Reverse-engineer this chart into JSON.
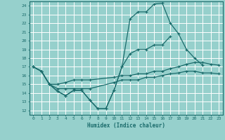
{
  "xlabel": "Humidex (Indice chaleur)",
  "xlim": [
    -0.5,
    23.5
  ],
  "ylim": [
    11.5,
    24.5
  ],
  "xticks": [
    0,
    1,
    2,
    3,
    4,
    5,
    6,
    7,
    8,
    9,
    10,
    11,
    12,
    13,
    14,
    15,
    16,
    17,
    18,
    19,
    20,
    21,
    22,
    23
  ],
  "yticks": [
    12,
    13,
    14,
    15,
    16,
    17,
    18,
    19,
    20,
    21,
    22,
    23,
    24
  ],
  "bg_color": "#96d0cc",
  "grid_color": "#ffffff",
  "line_color": "#1a6b6b",
  "lines": [
    {
      "x": [
        0,
        1,
        2,
        3,
        4,
        5,
        6,
        7,
        8,
        9,
        10,
        11,
        12,
        13,
        14,
        15,
        16,
        17,
        18,
        19,
        20,
        21
      ],
      "y": [
        17,
        16.5,
        15,
        14.2,
        13.7,
        14.3,
        14.3,
        13.2,
        12.2,
        12.2,
        14.3,
        17.0,
        22.5,
        23.3,
        23.3,
        24.2,
        24.3,
        22.0,
        20.8,
        19.0,
        18.0,
        17.2
      ]
    },
    {
      "x": [
        0,
        1,
        2,
        3,
        4,
        5,
        6,
        7,
        8,
        9,
        10,
        11,
        12,
        13,
        14,
        15,
        16,
        17
      ],
      "y": [
        17,
        16.5,
        15,
        14.2,
        13.7,
        14.3,
        14.3,
        13.2,
        12.2,
        12.2,
        14.3,
        17.0,
        18.5,
        19.0,
        19.0,
        19.5,
        19.5,
        20.5
      ]
    },
    {
      "x": [
        0,
        1,
        2,
        3,
        4,
        5,
        6,
        7,
        10,
        11,
        12,
        13,
        14,
        15,
        16,
        17,
        18,
        19,
        20,
        21,
        22,
        23
      ],
      "y": [
        17,
        16.5,
        15.0,
        14.5,
        14.5,
        14.5,
        14.5,
        14.5,
        15.2,
        15.5,
        15.5,
        15.5,
        15.8,
        15.8,
        16.0,
        16.2,
        16.3,
        16.5,
        16.5,
        16.3,
        16.3,
        16.2
      ]
    },
    {
      "x": [
        0,
        1,
        2,
        3,
        4,
        5,
        6,
        7,
        10,
        11,
        12,
        13,
        14,
        15,
        16,
        17,
        18,
        19,
        20,
        21,
        22,
        23
      ],
      "y": [
        17,
        16.5,
        15.0,
        15.0,
        15.2,
        15.5,
        15.5,
        15.5,
        15.8,
        16.0,
        16.0,
        16.2,
        16.2,
        16.5,
        16.5,
        16.8,
        17.0,
        17.3,
        17.5,
        17.5,
        17.3,
        17.2
      ]
    }
  ]
}
